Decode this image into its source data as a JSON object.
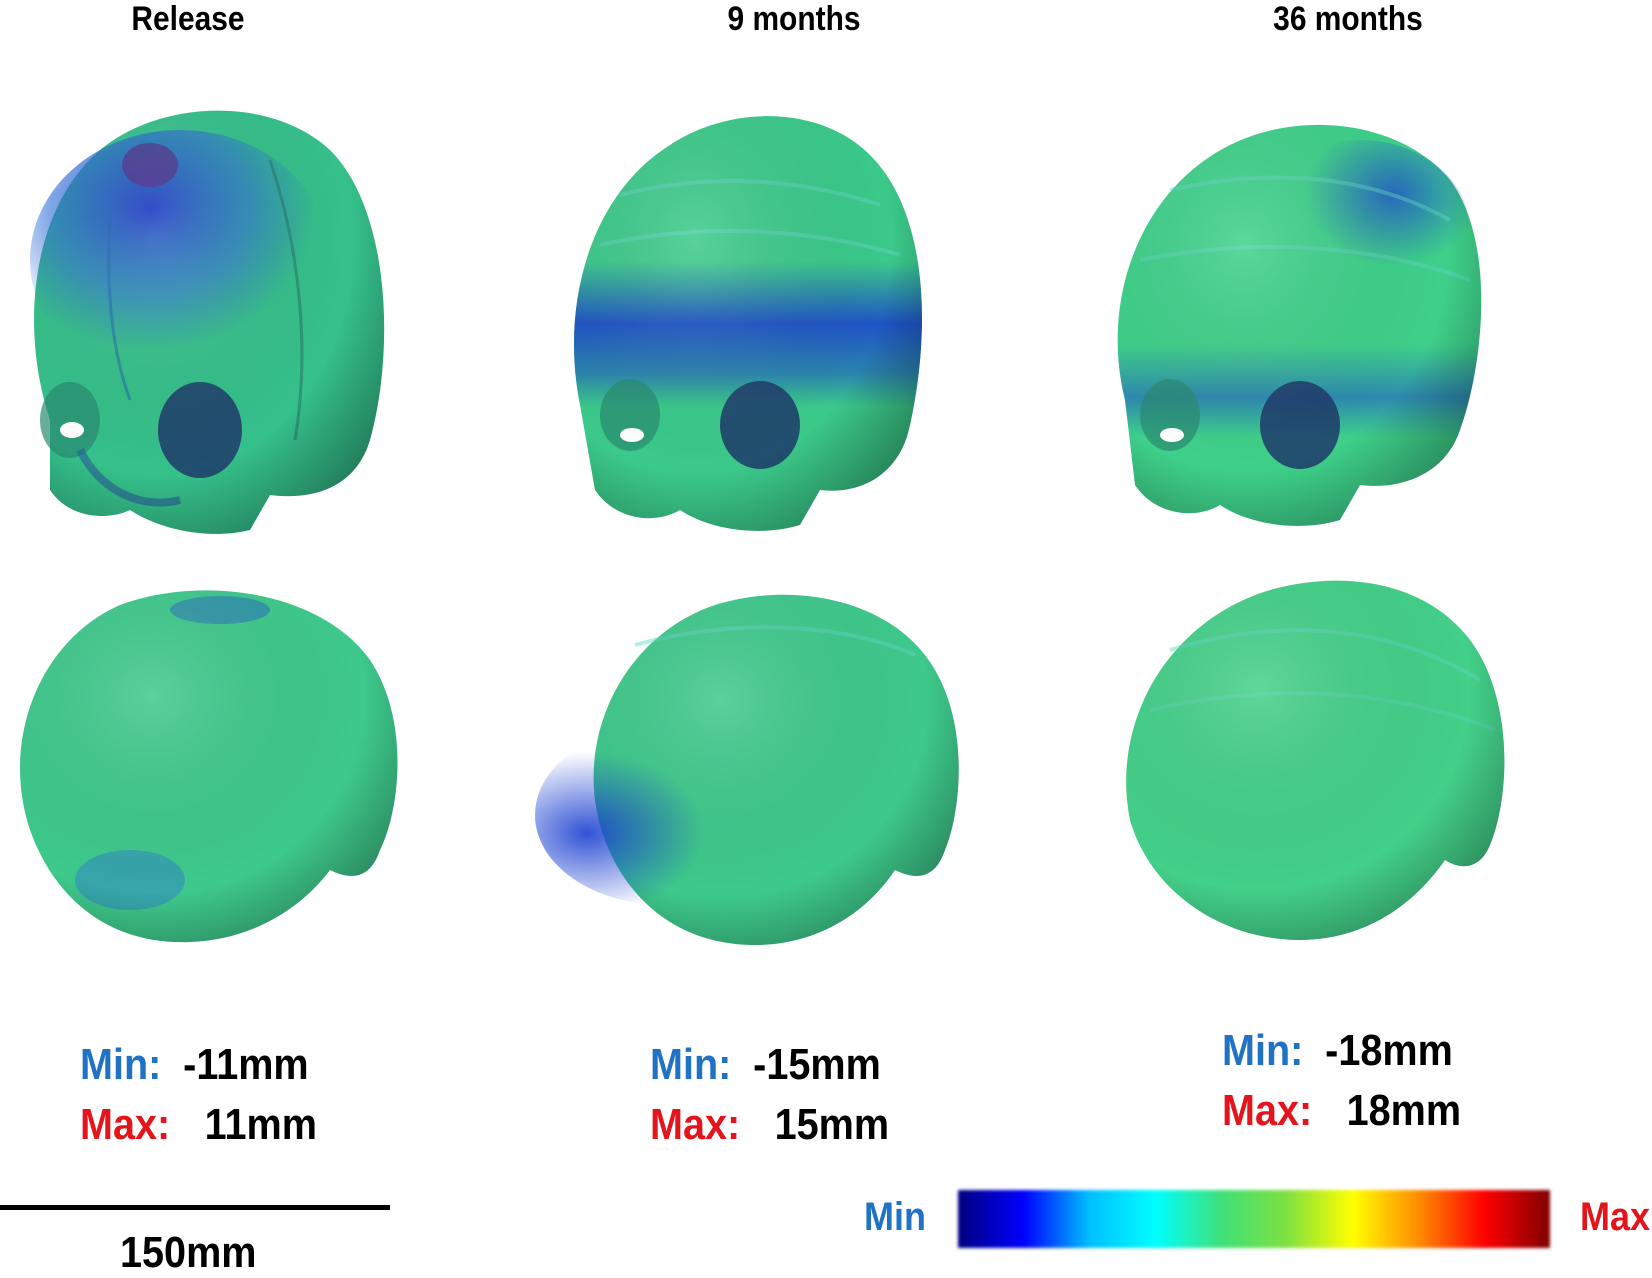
{
  "columns": [
    {
      "title": "Release",
      "min_label": "Min:",
      "min_value": "-11mm",
      "max_label": "Max:",
      "max_value": "11mm"
    },
    {
      "title": "9 months",
      "min_label": "Min:",
      "min_value": "-15mm",
      "max_label": "Max:",
      "max_value": "15mm"
    },
    {
      "title": "36 months",
      "min_label": "Min:",
      "min_value": "-18mm",
      "max_label": "Max:",
      "max_value": "18mm"
    }
  ],
  "scale_bar": {
    "label": "150mm"
  },
  "color_legend": {
    "min_label": "Min",
    "max_label": "Max",
    "gradient": [
      "#00007f",
      "#0000ff",
      "#00bfff",
      "#00ffff",
      "#3fe07a",
      "#7fe03f",
      "#ffff00",
      "#ff8c00",
      "#ff0000",
      "#7f0000"
    ]
  },
  "colors": {
    "min_label": "#1f72c4",
    "max_label": "#e3141b",
    "skull_base": "#2fc486",
    "skull_low": "#1a3fd1"
  }
}
